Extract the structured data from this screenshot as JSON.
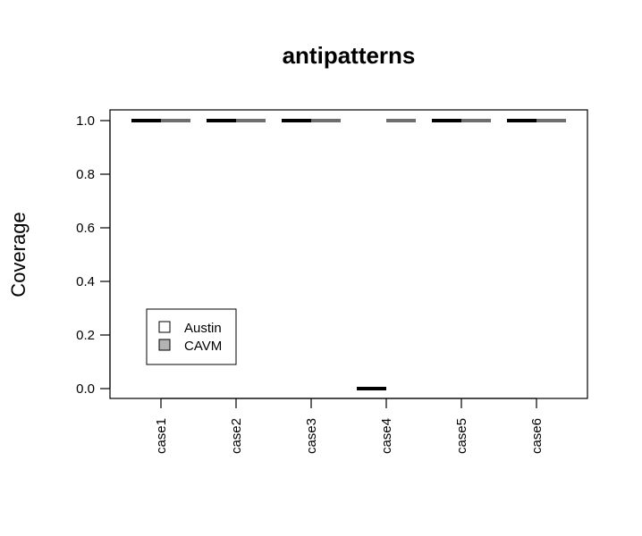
{
  "chart_data": {
    "type": "bar",
    "title": "antipatterns",
    "xlabel": "",
    "ylabel": "Coverage",
    "categories": [
      "case1",
      "case2",
      "case3",
      "case4",
      "case5",
      "case6"
    ],
    "series": [
      {
        "name": "Austin",
        "values": [
          1.0,
          1.0,
          1.0,
          0.0,
          1.0,
          1.0
        ],
        "color": "#000000"
      },
      {
        "name": "CAVM",
        "values": [
          1.0,
          1.0,
          1.0,
          1.0,
          1.0,
          1.0
        ],
        "color": "#6e6e6e"
      }
    ],
    "y_ticks": [
      "0.0",
      "0.2",
      "0.4",
      "0.6",
      "0.8",
      "1.0"
    ],
    "ylim": [
      0.0,
      1.0
    ],
    "grid": false,
    "legend": {
      "placement": "bottom-left",
      "entries": [
        {
          "label": "Austin",
          "swatch_fill": "#ffffff"
        },
        {
          "label": "CAVM",
          "swatch_fill": "#b3b3b3"
        }
      ]
    }
  }
}
